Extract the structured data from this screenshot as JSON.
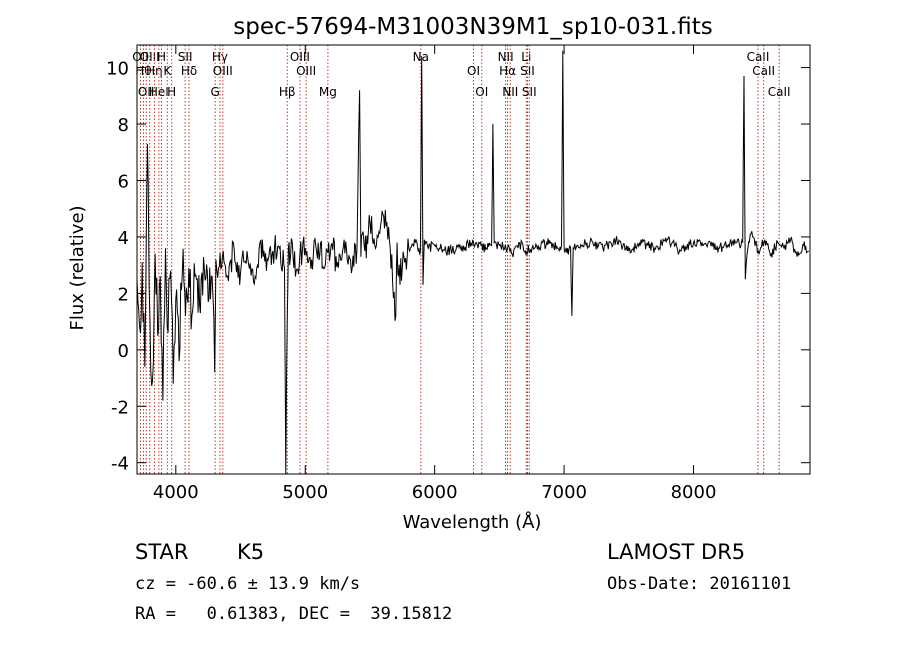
{
  "chart_data": {
    "type": "line",
    "title": "spec-57694-M31003N39M1_sp10-031.fits",
    "xlabel": "Wavelength (Å)",
    "ylabel": "Flux (relative)",
    "xlim": [
      3700,
      8900
    ],
    "ylim": [
      -4.4,
      10.8
    ],
    "x_ticks": [
      4000,
      5000,
      6000,
      7000,
      8000
    ],
    "y_ticks": [
      -4,
      -2,
      0,
      2,
      4,
      6,
      8,
      10
    ],
    "grid": false,
    "line_color": "#000000",
    "marker_color": "#c0392b",
    "line_markers": [
      {
        "wavelength": 3727,
        "label": "OII"
      },
      {
        "wavelength": 3750,
        "label": "Hθ"
      },
      {
        "wavelength": 3771,
        "label": "OII"
      },
      {
        "wavelength": 3798,
        "label": "OIII"
      },
      {
        "wavelength": 3835,
        "label": "Hη"
      },
      {
        "wavelength": 3869,
        "label": "HeI"
      },
      {
        "wavelength": 3889,
        "label": "H"
      },
      {
        "wavelength": 3934,
        "label": "K"
      },
      {
        "wavelength": 3968,
        "label": "H"
      },
      {
        "wavelength": 4072,
        "label": "SII"
      },
      {
        "wavelength": 4102,
        "label": "Hδ"
      },
      {
        "wavelength": 4304,
        "label": "G"
      },
      {
        "wavelength": 4341,
        "label": "Hγ"
      },
      {
        "wavelength": 4363,
        "label": "OIII"
      },
      {
        "wavelength": 4861,
        "label": "Hβ"
      },
      {
        "wavelength": 4959,
        "label": "OIII"
      },
      {
        "wavelength": 5007,
        "label": "OIII"
      },
      {
        "wavelength": 5175,
        "label": "Mg"
      },
      {
        "wavelength": 5893,
        "label": "Na"
      },
      {
        "wavelength": 6300,
        "label": "OI"
      },
      {
        "wavelength": 6364,
        "label": "OI"
      },
      {
        "wavelength": 6548,
        "label": "NII"
      },
      {
        "wavelength": 6563,
        "label": "Hα"
      },
      {
        "wavelength": 6584,
        "label": "NII"
      },
      {
        "wavelength": 6708,
        "label": "Li"
      },
      {
        "wavelength": 6717,
        "label": "SII"
      },
      {
        "wavelength": 6731,
        "label": "SII"
      },
      {
        "wavelength": 8498,
        "label": "CaII"
      },
      {
        "wavelength": 8542,
        "label": "CaII"
      },
      {
        "wavelength": 8662,
        "label": "CaII"
      }
    ],
    "series": [
      {
        "x": [
          3700,
          3720,
          3740,
          3760,
          3780,
          3800,
          3820,
          3840,
          3860,
          3880,
          3900,
          3920,
          3940,
          3960,
          3980,
          4000,
          4025,
          4050,
          4075,
          4100,
          4130,
          4160,
          4190,
          4220,
          4250,
          4280,
          4300,
          4310,
          4330,
          4360,
          4400,
          4450,
          4500,
          4550,
          4600,
          4650,
          4700,
          4750,
          4800,
          4840,
          4850,
          4861,
          4870,
          4880,
          4900,
          4930,
          4960,
          5000,
          5050,
          5100,
          5150,
          5200,
          5250,
          5300,
          5350,
          5400,
          5420,
          5430,
          5440,
          5460,
          5500,
          5550,
          5600,
          5650,
          5700,
          5710,
          5720,
          5750,
          5800,
          5850,
          5890,
          5900,
          5910,
          5920,
          5950,
          6000,
          6100,
          6200,
          6300,
          6400,
          6440,
          6450,
          6460,
          6500,
          6563,
          6600,
          6650,
          6700,
          6800,
          6900,
          6950,
          6980,
          6990,
          7000,
          7010,
          7050,
          7060,
          7070,
          7100,
          7200,
          7300,
          7400,
          7500,
          7600,
          7700,
          7800,
          7900,
          8000,
          8100,
          8200,
          8300,
          8340,
          8360,
          8380,
          8390,
          8400,
          8420,
          8450,
          8500,
          8550,
          8600,
          8650,
          8700,
          8750,
          8800,
          8850,
          8890
        ],
        "y": [
          2.5,
          0.8,
          3.1,
          -0.6,
          7.3,
          1.2,
          -1.1,
          3.4,
          0.5,
          2.6,
          -1.8,
          3.6,
          0.6,
          2.8,
          -1.2,
          1.8,
          -0.4,
          2.7,
          1.2,
          2.9,
          1.4,
          2.5,
          1.3,
          2.9,
          1.7,
          2.6,
          -0.8,
          3.2,
          2.9,
          3.3,
          2.6,
          3.6,
          2.7,
          3.5,
          2.4,
          3.8,
          2.8,
          3.5,
          3.6,
          2.9,
          -4.4,
          1.2,
          3.6,
          3.0,
          3.8,
          2.8,
          3.5,
          3.6,
          3.2,
          3.8,
          2.9,
          3.7,
          3.1,
          3.9,
          3.2,
          3.6,
          9.2,
          3.3,
          4.1,
          3.5,
          4.5,
          3.7,
          4.8,
          3.9,
          1.2,
          3.8,
          2.6,
          2.9,
          3.6,
          3.8,
          3.5,
          10.4,
          2.3,
          3.9,
          3.6,
          3.7,
          3.5,
          3.6,
          3.8,
          3.6,
          3.7,
          8.0,
          3.8,
          3.7,
          3.6,
          3.4,
          3.8,
          3.5,
          3.7,
          3.8,
          3.6,
          3.7,
          10.6,
          3.6,
          3.5,
          3.6,
          1.2,
          3.6,
          3.7,
          3.8,
          3.6,
          3.9,
          3.5,
          3.8,
          3.6,
          3.9,
          3.5,
          3.8,
          3.7,
          3.6,
          3.8,
          3.9,
          3.6,
          3.8,
          9.7,
          2.5,
          3.6,
          4.2,
          3.5,
          3.9,
          3.4,
          3.8,
          3.6,
          3.9,
          3.3,
          3.7,
          3.5
        ]
      }
    ]
  },
  "info": {
    "object_class": "STAR",
    "subclass": "K5",
    "survey": "LAMOST DR5",
    "redshift_line": "cz = -60.6 ± 13.9 km/s",
    "obs_date_line": "Obs-Date: 20161101",
    "coords_line": "RA =   0.61383, DEC =  39.15812"
  }
}
